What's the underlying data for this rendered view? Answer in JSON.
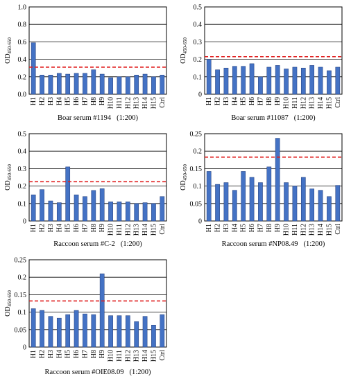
{
  "colors": {
    "bar": "#4472C4",
    "bar_edge": "#1F3A78",
    "threshold": "#E02020",
    "grid": "#000000"
  },
  "chart_data": [
    {
      "type": "bar",
      "categories": [
        "H1",
        "H2",
        "H3",
        "H4",
        "H5",
        "H6",
        "H7",
        "H8",
        "H9",
        "H10",
        "H11",
        "H12",
        "H13",
        "H14",
        "H15",
        "Ctrl"
      ],
      "values": [
        0.59,
        0.22,
        0.22,
        0.24,
        0.23,
        0.24,
        0.24,
        0.28,
        0.23,
        0.19,
        0.2,
        0.2,
        0.22,
        0.23,
        0.2,
        0.22
      ],
      "threshold": 0.31,
      "ylim": [
        0,
        1.0
      ],
      "yticks": [
        "0.0",
        "0.2",
        "0.4",
        "0.6",
        "0.8",
        "1.0"
      ],
      "ylabel_main": "OD",
      "ylabel_sub": "450-650",
      "caption_text": "Boar serum #1194",
      "caption_dilution": "(1:200)"
    },
    {
      "type": "bar",
      "categories": [
        "H1",
        "H2",
        "H3",
        "H4",
        "H5",
        "H6",
        "H7",
        "H8",
        "H9",
        "H10",
        "H11",
        "H12",
        "H13",
        "H14",
        "H15",
        "Ctrl"
      ],
      "values": [
        0.2,
        0.14,
        0.15,
        0.16,
        0.16,
        0.175,
        0.1,
        0.155,
        0.165,
        0.145,
        0.155,
        0.15,
        0.165,
        0.155,
        0.135,
        0.155
      ],
      "threshold": 0.215,
      "ylim": [
        0,
        0.5
      ],
      "yticks": [
        "0",
        "0.1",
        "0.2",
        "0.3",
        "0.4",
        "0.5"
      ],
      "ylabel_main": "OD",
      "ylabel_sub": "450-650",
      "caption_text": "Boar serum #11087",
      "caption_dilution": "(1:200)"
    },
    {
      "type": "bar",
      "categories": [
        "H1",
        "H2",
        "H3",
        "H4",
        "H5",
        "H6",
        "H7",
        "H8",
        "H9",
        "H10",
        "H11",
        "H12",
        "H13",
        "H14",
        "H15",
        "Ctrl"
      ],
      "values": [
        0.15,
        0.18,
        0.115,
        0.105,
        0.31,
        0.15,
        0.14,
        0.175,
        0.185,
        0.11,
        0.11,
        0.11,
        0.1,
        0.105,
        0.1,
        0.14
      ],
      "threshold": 0.225,
      "ylim": [
        0,
        0.5
      ],
      "yticks": [
        "0",
        "0.1",
        "0.2",
        "0.3",
        "0.4",
        "0.5"
      ],
      "ylabel_main": "OD",
      "ylabel_sub": "450-650",
      "caption_text": "Raccoon serum #C-2",
      "caption_dilution": "(1:200)"
    },
    {
      "type": "bar",
      "categories": [
        "H1",
        "H2",
        "H3",
        "H4",
        "H5",
        "H6",
        "H7",
        "H8",
        "H9",
        "H10",
        "H11",
        "H12",
        "H13",
        "H14",
        "H15",
        "Ctrl"
      ],
      "values": [
        0.142,
        0.105,
        0.11,
        0.088,
        0.142,
        0.125,
        0.11,
        0.155,
        0.237,
        0.11,
        0.1,
        0.125,
        0.092,
        0.088,
        0.07,
        0.102
      ],
      "threshold": 0.183,
      "ylim": [
        0,
        0.25
      ],
      "yticks": [
        "0",
        "0.05",
        "0.1",
        "0.15",
        "0.2",
        "0.25"
      ],
      "ylabel_main": "OD",
      "ylabel_sub": "450-650",
      "caption_text": "Raccoon serum #NP08.49",
      "caption_dilution": "(1:200)"
    },
    {
      "type": "bar",
      "categories": [
        "H1",
        "H2",
        "H3",
        "H4",
        "H5",
        "H6",
        "H7",
        "H8",
        "H9",
        "H10",
        "H11",
        "H12",
        "H13",
        "H14",
        "H15",
        "Ctrl"
      ],
      "values": [
        0.11,
        0.105,
        0.088,
        0.083,
        0.093,
        0.105,
        0.095,
        0.093,
        0.21,
        0.09,
        0.09,
        0.09,
        0.073,
        0.088,
        0.063,
        0.093
      ],
      "threshold": 0.132,
      "ylim": [
        0,
        0.25
      ],
      "yticks": [
        "0",
        "0.05",
        "0.1",
        "0.15",
        "0.2",
        "0.25"
      ],
      "ylabel_main": "OD",
      "ylabel_sub": "450-650",
      "caption_text": "Raccoon serum #OIE08.09",
      "caption_dilution": "(1:200)"
    }
  ]
}
